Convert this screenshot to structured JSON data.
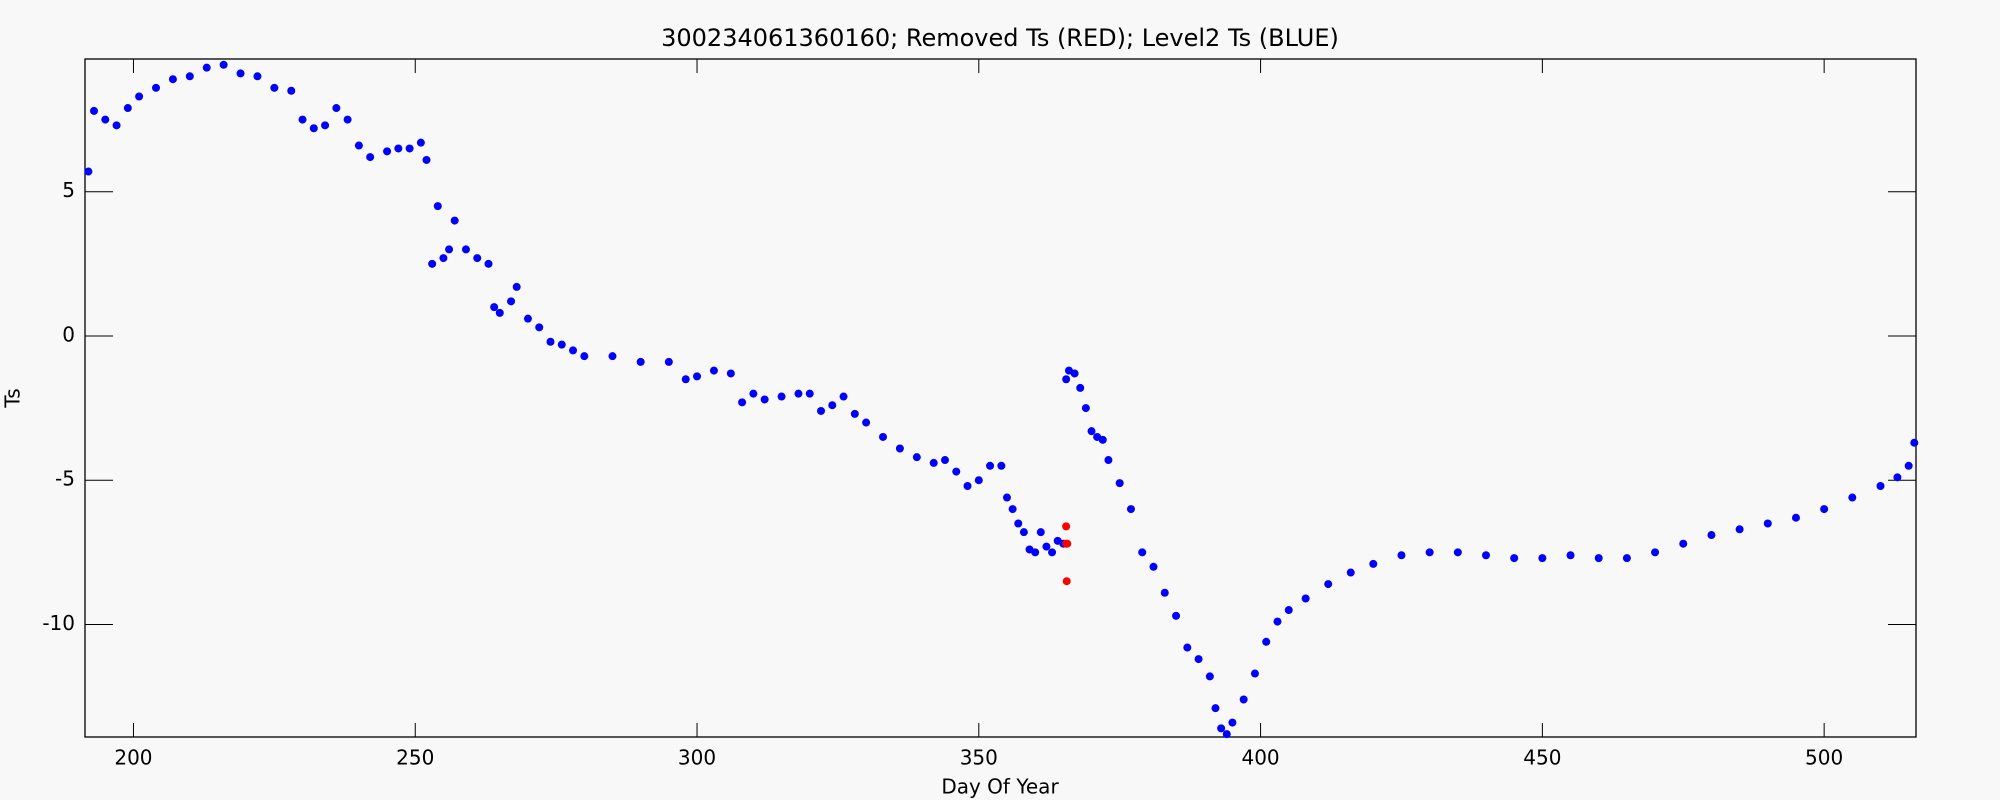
{
  "chart_data": {
    "type": "scatter",
    "title": "300234061360160; Removed Ts (RED); Level2 Ts (BLUE)",
    "x_label": "Day Of Year",
    "y_label": "Ts",
    "xlim": [
      191.4,
      516.3
    ],
    "ylim": [
      -13.9,
      9.6
    ],
    "xticks": [
      200,
      250,
      300,
      350,
      400,
      450,
      500
    ],
    "yticks": [
      -10,
      -5,
      0,
      5
    ],
    "series": [
      {
        "name": "Level2 Ts",
        "color": "#0000ff",
        "x": [
          192,
          193,
          195,
          197,
          199,
          201,
          204,
          207,
          210,
          213,
          216,
          219,
          222,
          225,
          228,
          230,
          232,
          234,
          236,
          238,
          240,
          242,
          245,
          247,
          249,
          251,
          252,
          253,
          254,
          255,
          256,
          257,
          259,
          261,
          263,
          264,
          265,
          267,
          268,
          270,
          272,
          274,
          276,
          278,
          280,
          285,
          290,
          295,
          298,
          300,
          303,
          306,
          308,
          310,
          312,
          315,
          318,
          320,
          322,
          324,
          326,
          328,
          330,
          333,
          336,
          339,
          342,
          344,
          346,
          348,
          350,
          352,
          354,
          355,
          356,
          357,
          358,
          359,
          360,
          361,
          362,
          363,
          364,
          365,
          365.5,
          366,
          367,
          368,
          369,
          370,
          371,
          372,
          373,
          375,
          377,
          379,
          381,
          383,
          385,
          387,
          389,
          391,
          392,
          393,
          394,
          395,
          397,
          399,
          401,
          403,
          405,
          408,
          412,
          416,
          420,
          425,
          430,
          435,
          440,
          445,
          450,
          455,
          460,
          465,
          470,
          475,
          480,
          485,
          490,
          495,
          500,
          505,
          510,
          513,
          515,
          516
        ],
        "y": [
          5.7,
          7.8,
          7.5,
          7.3,
          7.9,
          8.3,
          8.6,
          8.9,
          9.0,
          9.3,
          9.4,
          9.1,
          9.0,
          8.6,
          8.5,
          7.5,
          7.2,
          7.3,
          7.9,
          7.5,
          6.6,
          6.2,
          6.4,
          6.5,
          6.5,
          6.7,
          6.1,
          2.5,
          4.5,
          2.7,
          3.0,
          4.0,
          3.0,
          2.7,
          2.5,
          1.0,
          0.8,
          1.2,
          1.7,
          0.6,
          0.3,
          -0.2,
          -0.3,
          -0.5,
          -0.7,
          -0.7,
          -0.9,
          -0.9,
          -1.5,
          -1.4,
          -1.2,
          -1.3,
          -2.3,
          -2.0,
          -2.2,
          -2.1,
          -2.0,
          -2.0,
          -2.6,
          -2.4,
          -2.1,
          -2.7,
          -3.0,
          -3.5,
          -3.9,
          -4.2,
          -4.4,
          -4.3,
          -4.7,
          -5.2,
          -5.0,
          -4.5,
          -4.5,
          -5.6,
          -6.0,
          -6.5,
          -6.8,
          -7.4,
          -7.5,
          -6.8,
          -7.3,
          -7.5,
          -7.1,
          -7.2,
          -1.5,
          -1.2,
          -1.3,
          -1.8,
          -2.5,
          -3.3,
          -3.5,
          -3.6,
          -4.3,
          -5.1,
          -6.0,
          -7.5,
          -8.0,
          -8.9,
          -9.7,
          -10.8,
          -11.2,
          -11.8,
          -12.9,
          -13.6,
          -13.8,
          -13.4,
          -12.6,
          -11.7,
          -10.6,
          -9.9,
          -9.5,
          -9.1,
          -8.6,
          -8.2,
          -7.9,
          -7.6,
          -7.5,
          -7.5,
          -7.6,
          -7.7,
          -7.7,
          -7.6,
          -7.7,
          -7.7,
          -7.5,
          -7.2,
          -6.9,
          -6.7,
          -6.5,
          -6.3,
          -6.0,
          -5.6,
          -5.2,
          -4.9,
          -4.5,
          -3.7
        ]
      },
      {
        "name": "Removed Ts",
        "color": "#ff0000",
        "x": [
          365.5,
          365.5,
          365.7,
          365.6
        ],
        "y": [
          -6.6,
          -7.2,
          -7.2,
          -8.5
        ]
      }
    ]
  }
}
